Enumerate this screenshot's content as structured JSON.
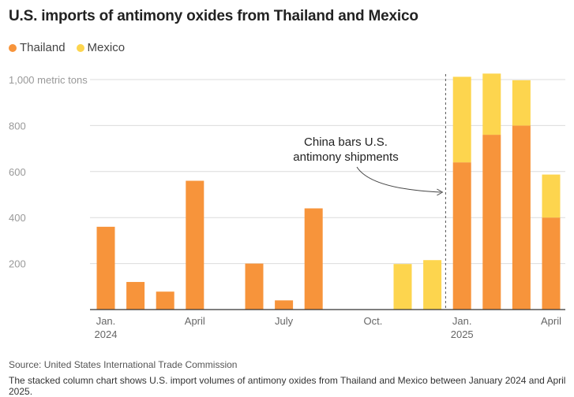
{
  "chart_data": {
    "type": "bar",
    "stacked": true,
    "title": "U.S. imports of antimony oxides from Thailand and Mexico",
    "ylabel_top": "1,000 metric tons",
    "y_ticks": [
      {
        "value": 200,
        "label": "200"
      },
      {
        "value": 400,
        "label": "400"
      },
      {
        "value": 600,
        "label": "600"
      },
      {
        "value": 800,
        "label": "800"
      },
      {
        "value": 1000,
        "label": "1,000 metric tons"
      }
    ],
    "ylim": [
      0,
      1000
    ],
    "categories": [
      "Jan 2024",
      "Feb 2024",
      "Mar 2024",
      "Apr 2024",
      "May 2024",
      "Jun 2024",
      "Jul 2024",
      "Aug 2024",
      "Sep 2024",
      "Oct 2024",
      "Nov 2024",
      "Dec 2024",
      "Jan 2025",
      "Feb 2025",
      "Mar 2025",
      "Apr 2025"
    ],
    "x_tick_labels": [
      {
        "index": 0,
        "line1": "Jan.",
        "line2": "2024"
      },
      {
        "index": 3,
        "line1": "April",
        "line2": ""
      },
      {
        "index": 6,
        "line1": "July",
        "line2": ""
      },
      {
        "index": 9,
        "line1": "Oct.",
        "line2": ""
      },
      {
        "index": 12,
        "line1": "Jan.",
        "line2": "2025"
      },
      {
        "index": 15,
        "line1": "April",
        "line2": ""
      }
    ],
    "series": [
      {
        "name": "Thailand",
        "color": "#f7943b",
        "values": [
          360,
          120,
          78,
          560,
          0,
          200,
          40,
          440,
          0,
          0,
          0,
          0,
          640,
          760,
          800,
          400
        ]
      },
      {
        "name": "Mexico",
        "color": "#fdd54e",
        "values": [
          0,
          0,
          0,
          0,
          0,
          0,
          0,
          0,
          0,
          0,
          198,
          215,
          372,
          266,
          197,
          187
        ]
      }
    ],
    "annotation": {
      "line1": "China bars U.S.",
      "line2": "antimony shipments",
      "after_index": 11
    },
    "grid": true
  },
  "footer": {
    "source": "Source: United States International Trade Commission",
    "description": "The stacked column chart shows U.S. import volumes of antimony oxides from Thailand and Mexico between January 2024 and April 2025."
  }
}
